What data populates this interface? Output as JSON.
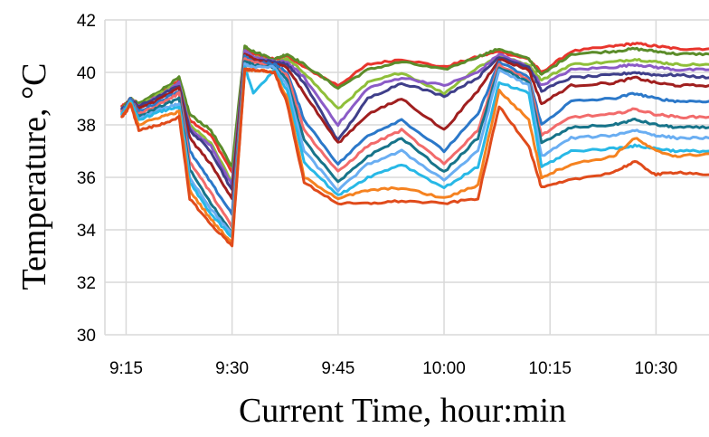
{
  "chart_data": {
    "type": "line",
    "title": "",
    "xlabel": "Current Time, hour:min",
    "ylabel": "Temperature, °C",
    "xlim": [
      9.2,
      10.625
    ],
    "ylim": [
      30,
      42
    ],
    "x_ticks": [
      {
        "value": 9.25,
        "label": "9:15"
      },
      {
        "value": 9.5,
        "label": "9:30"
      },
      {
        "value": 9.75,
        "label": "9:45"
      },
      {
        "value": 10.0,
        "label": "10:00"
      },
      {
        "value": 10.25,
        "label": "10:15"
      },
      {
        "value": 10.5,
        "label": "10:30"
      }
    ],
    "y_ticks": [
      30,
      32,
      34,
      36,
      38,
      40,
      42
    ],
    "grid": true,
    "x": [
      9.24,
      9.25,
      9.26,
      9.28,
      9.33,
      9.375,
      9.4,
      9.45,
      9.5,
      9.53,
      9.55,
      9.6,
      9.63,
      9.67,
      9.75,
      9.82,
      9.9,
      10.0,
      10.08,
      10.13,
      10.2,
      10.23,
      10.3,
      10.4,
      10.45,
      10.5,
      10.55,
      10.625
    ],
    "series": [
      {
        "color": "#e8352d",
        "values": [
          38.7,
          38.8,
          39.0,
          38.8,
          39.2,
          39.7,
          38.2,
          37.6,
          36.2,
          40.9,
          40.7,
          40.5,
          40.6,
          40.2,
          39.5,
          40.3,
          40.5,
          40.2,
          40.6,
          40.8,
          40.5,
          40.0,
          40.8,
          41.0,
          41.1,
          41.0,
          40.9,
          40.9
        ]
      },
      {
        "color": "#5b8c2a",
        "values": [
          38.6,
          38.8,
          39.0,
          38.8,
          39.3,
          39.8,
          38.4,
          37.8,
          36.4,
          41.0,
          40.8,
          40.5,
          40.7,
          40.3,
          39.4,
          40.1,
          40.4,
          40.1,
          40.6,
          40.9,
          40.5,
          39.9,
          40.7,
          40.8,
          40.9,
          40.8,
          40.7,
          40.7
        ]
      },
      {
        "color": "#8fbf3a",
        "values": [
          38.6,
          38.7,
          39.0,
          38.7,
          39.2,
          39.6,
          38.0,
          37.3,
          35.8,
          40.8,
          40.6,
          40.4,
          40.5,
          40.0,
          38.6,
          39.6,
          40.0,
          39.2,
          40.2,
          40.6,
          40.3,
          39.7,
          40.3,
          40.4,
          40.5,
          40.4,
          40.3,
          40.3
        ]
      },
      {
        "color": "#8b5bc7",
        "values": [
          38.6,
          38.7,
          39.0,
          38.7,
          39.1,
          39.6,
          37.9,
          37.2,
          35.7,
          40.8,
          40.6,
          40.4,
          40.4,
          39.8,
          38.0,
          39.4,
          39.8,
          39.5,
          40.0,
          40.7,
          40.2,
          39.5,
          40.1,
          40.2,
          40.3,
          40.2,
          40.1,
          40.1
        ]
      },
      {
        "color": "#3f3f8a",
        "values": [
          38.6,
          38.7,
          39.0,
          38.7,
          39.1,
          39.5,
          37.8,
          37.0,
          35.5,
          40.7,
          40.5,
          40.4,
          40.3,
          39.6,
          37.4,
          39.0,
          39.6,
          39.1,
          39.8,
          40.6,
          40.2,
          39.3,
          39.8,
          39.9,
          40.0,
          39.9,
          39.9,
          39.8
        ]
      },
      {
        "color": "#a01f1f",
        "values": [
          38.5,
          38.7,
          39.0,
          38.6,
          39.0,
          39.4,
          37.5,
          36.5,
          35.2,
          40.7,
          40.5,
          40.3,
          40.2,
          39.2,
          37.3,
          38.4,
          39.0,
          37.8,
          39.3,
          40.5,
          40.1,
          38.8,
          39.5,
          39.6,
          39.8,
          39.6,
          39.5,
          39.5
        ]
      },
      {
        "color": "#2b78c9",
        "values": [
          38.5,
          38.7,
          39.0,
          38.5,
          38.9,
          39.3,
          37.0,
          35.8,
          34.6,
          40.6,
          40.4,
          40.3,
          40.0,
          38.2,
          36.5,
          37.6,
          38.2,
          37.0,
          38.4,
          40.4,
          39.8,
          38.0,
          38.9,
          39.0,
          39.2,
          39.0,
          38.9,
          38.9
        ]
      },
      {
        "color": "#f26b6b",
        "values": [
          38.5,
          38.6,
          38.9,
          38.4,
          38.8,
          39.2,
          36.6,
          35.4,
          34.1,
          40.5,
          40.4,
          40.2,
          39.9,
          37.8,
          36.2,
          37.2,
          37.8,
          36.5,
          37.8,
          40.3,
          39.7,
          37.6,
          38.3,
          38.4,
          38.6,
          38.4,
          38.3,
          38.3
        ]
      },
      {
        "color": "#17748a",
        "values": [
          38.4,
          38.6,
          38.9,
          38.3,
          38.7,
          39.0,
          36.3,
          35.0,
          33.9,
          40.4,
          40.3,
          40.2,
          39.7,
          37.4,
          35.8,
          36.8,
          37.5,
          36.2,
          37.5,
          40.2,
          39.6,
          37.3,
          37.9,
          38.0,
          38.2,
          38.0,
          37.9,
          37.9
        ]
      },
      {
        "color": "#6aaef2",
        "values": [
          38.4,
          38.6,
          38.9,
          38.2,
          38.6,
          38.8,
          36.0,
          34.8,
          33.8,
          40.3,
          40.2,
          40.2,
          39.5,
          37.0,
          35.5,
          36.5,
          37.0,
          35.9,
          37.0,
          40.1,
          39.5,
          36.8,
          37.5,
          37.6,
          37.8,
          37.6,
          37.5,
          37.5
        ]
      },
      {
        "color": "#28b8e6",
        "values": [
          38.4,
          38.6,
          38.9,
          38.2,
          38.5,
          38.7,
          35.8,
          34.6,
          33.7,
          40.2,
          39.2,
          40.1,
          39.3,
          36.6,
          35.3,
          36.0,
          36.5,
          35.6,
          36.4,
          39.6,
          39.2,
          36.4,
          37.0,
          37.1,
          37.2,
          37.1,
          37.0,
          37.0
        ]
      },
      {
        "color": "#f58220",
        "values": [
          38.3,
          38.5,
          38.8,
          38.0,
          38.3,
          38.5,
          35.5,
          34.4,
          33.5,
          40.1,
          40.1,
          40.0,
          39.0,
          36.0,
          35.2,
          35.5,
          35.6,
          35.2,
          35.7,
          39.3,
          38.2,
          36.0,
          36.5,
          36.8,
          37.5,
          37.0,
          36.8,
          36.9
        ]
      },
      {
        "color": "#e04b1b",
        "values": [
          38.3,
          38.5,
          38.8,
          37.8,
          38.0,
          38.3,
          35.2,
          34.2,
          33.4,
          40.1,
          40.1,
          40.0,
          38.8,
          35.8,
          35.0,
          35.0,
          35.1,
          35.0,
          35.2,
          38.7,
          37.2,
          35.6,
          35.9,
          36.2,
          36.6,
          36.1,
          36.2,
          36.1
        ]
      }
    ]
  }
}
